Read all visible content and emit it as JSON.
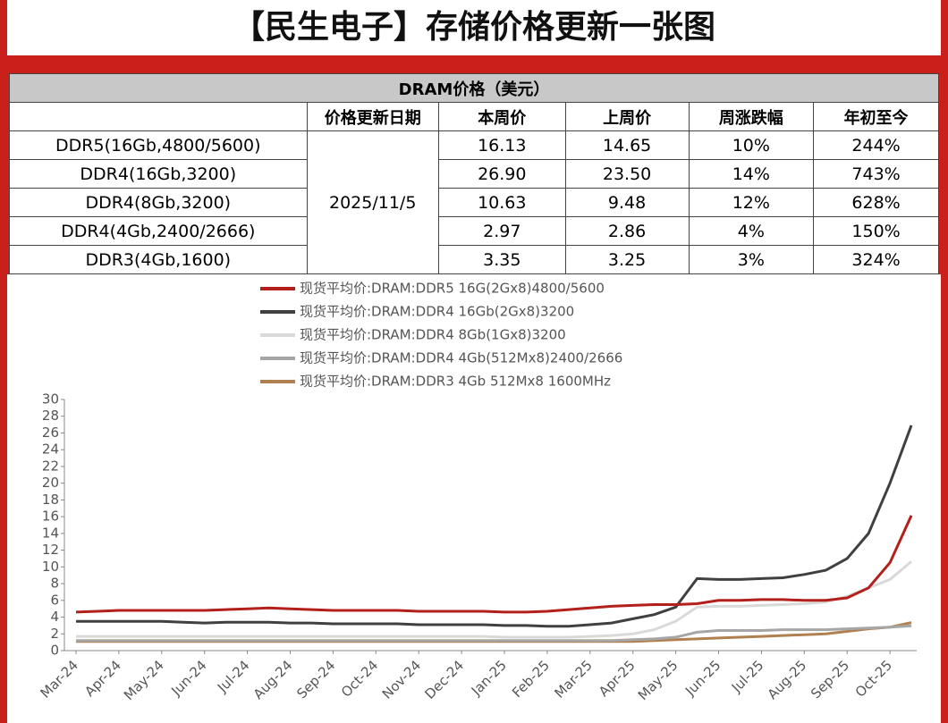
{
  "title": "【民生电子】存储价格更新一张图",
  "table": {
    "header": "DRAM价格（美元）",
    "columns": [
      "价格更新日期",
      "本周价",
      "上周价",
      "周涨跌幅",
      "年初至今"
    ],
    "date": "2025/11/5",
    "rows": [
      [
        "DDR5(16Gb,4800/5600)",
        "16.13",
        "14.65",
        "10%",
        "244%"
      ],
      [
        "DDR4(16Gb,3200)",
        "26.90",
        "23.50",
        "14%",
        "743%"
      ],
      [
        "DDR4(8Gb,3200)",
        "10.63",
        "9.48",
        "12%",
        "628%"
      ],
      [
        "DDR4(4Gb,2400/2666)",
        "2.97",
        "2.86",
        "4%",
        "150%"
      ],
      [
        "DDR3(4Gb,1600)",
        "3.35",
        "3.25",
        "3%",
        "324%"
      ]
    ]
  },
  "chart_data": {
    "type": "line",
    "categories": [
      "Mar-24",
      null,
      "Apr-24",
      null,
      "May-24",
      null,
      "Jun-24",
      null,
      "Jul-24",
      null,
      "Aug-24",
      null,
      "Sep-24",
      null,
      "Oct-24",
      null,
      "Nov-24",
      null,
      "Dec-24",
      null,
      "Jan-25",
      null,
      "Feb-25",
      null,
      "Mar-25",
      null,
      "Apr-25",
      null,
      "May-25",
      null,
      "Jun-25",
      null,
      "Jul-25",
      null,
      "Aug-25",
      null,
      "Sep-25",
      null,
      "Oct-25",
      null
    ],
    "ylim": [
      0,
      30
    ],
    "yticks": [
      0,
      2,
      4,
      6,
      8,
      10,
      12,
      14,
      16,
      18,
      20,
      22,
      24,
      26,
      28,
      30
    ],
    "series": [
      {
        "name": "现货平均价:DRAM:DDR5  16G(2Gx8)4800/5600",
        "color": "#b3201c",
        "values": [
          4.6,
          4.7,
          4.8,
          4.8,
          4.8,
          4.8,
          4.8,
          4.9,
          5.0,
          5.1,
          5.0,
          4.9,
          4.8,
          4.8,
          4.8,
          4.8,
          4.7,
          4.7,
          4.7,
          4.7,
          4.6,
          4.6,
          4.7,
          4.9,
          5.1,
          5.3,
          5.4,
          5.5,
          5.5,
          5.6,
          6.0,
          6.0,
          6.1,
          6.1,
          6.0,
          6.0,
          6.3,
          7.5,
          10.5,
          16.13
        ]
      },
      {
        "name": "现货平均价:DRAM:DDR4  16Gb(2Gx8)3200",
        "color": "#404040",
        "values": [
          3.5,
          3.5,
          3.5,
          3.5,
          3.5,
          3.4,
          3.3,
          3.4,
          3.4,
          3.4,
          3.3,
          3.3,
          3.2,
          3.2,
          3.2,
          3.2,
          3.1,
          3.1,
          3.1,
          3.1,
          3.0,
          3.0,
          2.9,
          2.9,
          3.1,
          3.3,
          3.8,
          4.3,
          5.2,
          8.6,
          8.5,
          8.5,
          8.6,
          8.7,
          9.1,
          9.6,
          11.0,
          14.0,
          20.0,
          26.9
        ]
      },
      {
        "name": "现货平均价:DRAM:DDR4  8Gb(1Gx8)3200",
        "color": "#d9d9d9",
        "values": [
          1.7,
          1.7,
          1.7,
          1.7,
          1.7,
          1.7,
          1.7,
          1.7,
          1.7,
          1.7,
          1.7,
          1.7,
          1.7,
          1.7,
          1.7,
          1.7,
          1.7,
          1.7,
          1.7,
          1.7,
          1.6,
          1.6,
          1.6,
          1.6,
          1.7,
          1.8,
          2.0,
          2.5,
          3.5,
          5.2,
          5.3,
          5.3,
          5.4,
          5.5,
          5.6,
          5.8,
          6.5,
          7.5,
          8.5,
          10.63
        ]
      },
      {
        "name": "现货平均价:DRAM:DDR4  4Gb(512Mx8)2400/2666",
        "color": "#a6a6a6",
        "values": [
          1.2,
          1.2,
          1.2,
          1.2,
          1.2,
          1.2,
          1.2,
          1.2,
          1.2,
          1.2,
          1.2,
          1.2,
          1.2,
          1.2,
          1.2,
          1.2,
          1.2,
          1.2,
          1.2,
          1.2,
          1.2,
          1.2,
          1.2,
          1.2,
          1.2,
          1.2,
          1.3,
          1.4,
          1.6,
          2.2,
          2.4,
          2.4,
          2.4,
          2.5,
          2.5,
          2.5,
          2.6,
          2.7,
          2.8,
          2.97
        ]
      },
      {
        "name": "现货平均价:DRAM:DDR3  4Gb 512Mx8 1600MHz",
        "color": "#b08050",
        "values": [
          1.1,
          1.1,
          1.1,
          1.1,
          1.1,
          1.1,
          1.1,
          1.1,
          1.1,
          1.1,
          1.1,
          1.1,
          1.1,
          1.1,
          1.1,
          1.1,
          1.1,
          1.1,
          1.1,
          1.1,
          1.1,
          1.1,
          1.1,
          1.1,
          1.1,
          1.1,
          1.1,
          1.2,
          1.3,
          1.4,
          1.5,
          1.6,
          1.7,
          1.8,
          1.9,
          2.0,
          2.3,
          2.6,
          2.8,
          3.35
        ]
      }
    ]
  }
}
